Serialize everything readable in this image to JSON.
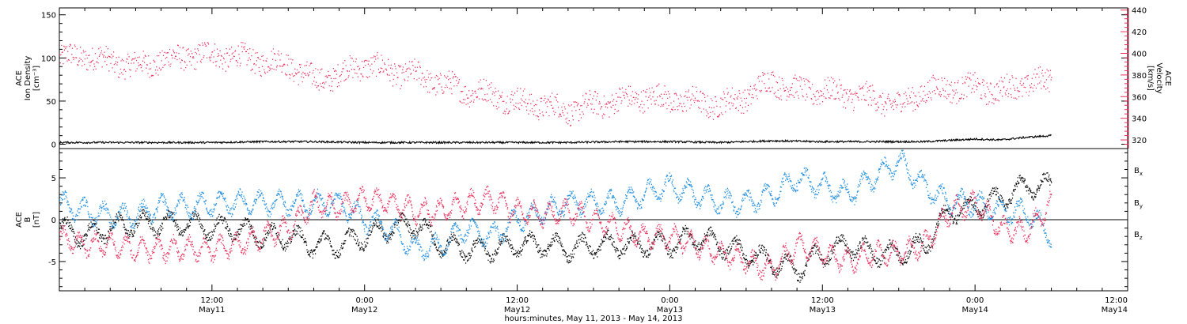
{
  "colors": {
    "density": "#e8305d",
    "velocity_axis": "#e8305d",
    "bx": "#000000",
    "by": "#1f8ee0",
    "bz": "#e8305d",
    "axes": "#000000"
  },
  "time_axis": {
    "title": "hours:minutes, May 11, 2013 - May 14, 2013",
    "range_hours": [
      0,
      84
    ],
    "ticks": [
      {
        "hour": 12,
        "time": "12:00",
        "date": "May11"
      },
      {
        "hour": 24,
        "time": "0:00",
        "date": "May12"
      },
      {
        "hour": 36,
        "time": "12:00",
        "date": "May12"
      },
      {
        "hour": 48,
        "time": "0:00",
        "date": "May13"
      },
      {
        "hour": 60,
        "time": "12:00",
        "date": "May13"
      },
      {
        "hour": 72,
        "time": "0:00",
        "date": "May14"
      },
      {
        "hour": 84,
        "time": "12:00",
        "date": "May14"
      }
    ]
  },
  "chart_data": [
    {
      "type": "scatter",
      "panel": "top",
      "ylabel": [
        "ACE",
        "Ion Density",
        "[cm⁻³]"
      ],
      "ylim": [
        -5,
        158
      ],
      "yticks": [
        0,
        50,
        100,
        150
      ],
      "ytick_labels": [
        "0",
        "50",
        "100",
        "150"
      ],
      "y2label": [
        "ACE",
        "Velocity",
        "[km/s]"
      ],
      "y2lim": [
        312,
        442
      ],
      "y2ticks": [
        320,
        340,
        360,
        380,
        400,
        420,
        440
      ],
      "y2tick_labels": [
        "320",
        "340",
        "360",
        "380",
        "400",
        "420",
        "440"
      ],
      "series": [
        {
          "key": "velocity",
          "axis": "right",
          "color_key": "velocity_axis",
          "x": [
            0,
            2,
            4,
            6,
            8,
            10,
            12,
            14,
            16,
            18,
            20,
            22,
            24,
            26,
            28,
            30,
            32,
            34,
            36,
            38,
            40,
            42,
            44,
            46,
            48,
            50,
            52,
            54,
            56,
            58,
            60,
            62,
            64,
            66,
            68,
            70,
            72,
            74,
            76,
            78
          ],
          "y": [
            395,
            398,
            392,
            388,
            393,
            397,
            399,
            396,
            393,
            390,
            375,
            380,
            390,
            383,
            380,
            372,
            365,
            362,
            355,
            352,
            347,
            352,
            356,
            360,
            357,
            355,
            352,
            360,
            375,
            365,
            365,
            362,
            358,
            352,
            365,
            368,
            368,
            365,
            372,
            375
          ]
        },
        {
          "key": "density",
          "axis": "left",
          "color_key": "bx",
          "x": [
            0,
            4,
            8,
            12,
            16,
            20,
            24,
            28,
            32,
            36,
            40,
            44,
            48,
            52,
            56,
            60,
            64,
            68,
            72,
            74,
            76,
            78
          ],
          "y": [
            2,
            2,
            2,
            2,
            3,
            3,
            2,
            2,
            2,
            2,
            2,
            3,
            3,
            2,
            4,
            3,
            3,
            3,
            6,
            5,
            8,
            10
          ]
        }
      ]
    },
    {
      "type": "scatter",
      "panel": "bottom",
      "ylabel": [
        "ACE",
        "B",
        "[nT]"
      ],
      "ylim": [
        -8.5,
        8.5
      ],
      "yticks": [
        -5,
        0,
        5
      ],
      "ytick_labels": [
        "-5",
        "0",
        "5"
      ],
      "legend": [
        "Bx",
        "By",
        "Bz"
      ],
      "series": [
        {
          "key": "bx",
          "label": "B",
          "sub": "x",
          "color_key": "bx",
          "x": [
            0,
            2,
            4,
            6,
            8,
            10,
            12,
            14,
            16,
            18,
            20,
            22,
            24,
            26,
            28,
            30,
            32,
            34,
            36,
            38,
            40,
            42,
            44,
            46,
            48,
            50,
            52,
            54,
            56,
            58,
            60,
            62,
            64,
            66,
            68,
            70,
            72,
            74,
            76,
            78
          ],
          "y": [
            -1,
            -2,
            -1,
            -0.5,
            -0.5,
            -0.5,
            -1,
            -1,
            -2,
            -2,
            -3,
            -3,
            -2,
            -1,
            -0.5,
            -3,
            -3.5,
            -3.5,
            -3,
            -3,
            -3.5,
            -3,
            -3,
            -3,
            -3,
            -2,
            -3,
            -4,
            -5,
            -6,
            -4,
            -3,
            -4,
            -4,
            -3,
            1,
            1.5,
            2.5,
            4,
            4
          ]
        },
        {
          "key": "by",
          "label": "B",
          "sub": "y",
          "color_key": "by",
          "x": [
            0,
            2,
            4,
            6,
            8,
            10,
            12,
            14,
            16,
            18,
            20,
            22,
            24,
            26,
            28,
            30,
            32,
            34,
            36,
            38,
            40,
            42,
            44,
            46,
            48,
            50,
            52,
            54,
            56,
            58,
            60,
            62,
            64,
            66,
            68,
            70,
            72,
            74,
            76,
            78
          ],
          "y": [
            2,
            1,
            0.5,
            0.5,
            1.5,
            1.5,
            2,
            2,
            2,
            2,
            2,
            2,
            0,
            -1,
            -3.5,
            -3,
            -1,
            -2,
            0,
            1,
            2,
            2,
            2,
            3,
            4,
            3,
            2,
            2,
            3,
            5,
            4,
            3,
            5,
            7,
            4,
            2,
            2,
            1,
            1,
            -2
          ]
        },
        {
          "key": "bz",
          "label": "B",
          "sub": "z",
          "color_key": "bz",
          "x": [
            0,
            2,
            4,
            6,
            8,
            10,
            12,
            14,
            16,
            18,
            20,
            22,
            24,
            26,
            28,
            30,
            32,
            34,
            36,
            38,
            40,
            42,
            44,
            46,
            48,
            50,
            52,
            54,
            56,
            58,
            60,
            62,
            64,
            66,
            68,
            70,
            72,
            74,
            76,
            78
          ],
          "y": [
            -2,
            -3,
            -3,
            -3.5,
            -3.5,
            -3.5,
            -3.5,
            -3,
            -2,
            -1,
            2,
            1.5,
            2.5,
            2,
            1,
            1,
            2,
            2.5,
            1,
            0.5,
            1,
            0,
            -1,
            -2,
            -2,
            -3,
            -4,
            -5,
            -6,
            -3,
            -4,
            -5,
            -4,
            -4,
            -3,
            1,
            2,
            -1,
            -1.5,
            2
          ]
        }
      ]
    }
  ]
}
